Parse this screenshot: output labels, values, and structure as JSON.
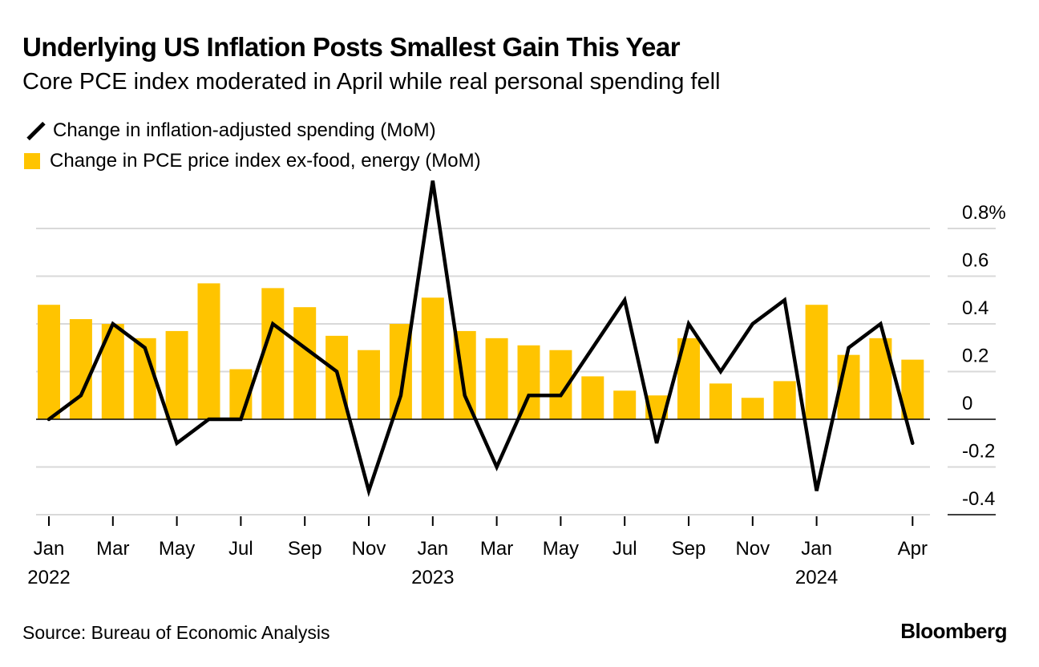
{
  "title": "Underlying US Inflation Posts Smallest Gain This Year",
  "subtitle": "Core PCE index moderated in April while real personal spending fell",
  "source": "Source: Bureau of Economic Analysis",
  "brand": "Bloomberg",
  "colors": {
    "bar": "#FFC400",
    "line": "#000000",
    "grid": "#d9d9d9"
  },
  "chart_data": {
    "type": "bar",
    "x": [
      "2022-01",
      "2022-02",
      "2022-03",
      "2022-04",
      "2022-05",
      "2022-06",
      "2022-07",
      "2022-08",
      "2022-09",
      "2022-10",
      "2022-11",
      "2022-12",
      "2023-01",
      "2023-02",
      "2023-03",
      "2023-04",
      "2023-05",
      "2023-06",
      "2023-07",
      "2023-08",
      "2023-09",
      "2023-10",
      "2023-11",
      "2023-12",
      "2024-01",
      "2024-02",
      "2024-03",
      "2024-04"
    ],
    "series": [
      {
        "name": "Change in PCE price index ex-food, energy (MoM)",
        "type": "bar",
        "values": [
          0.48,
          0.42,
          0.4,
          0.34,
          0.37,
          0.57,
          0.21,
          0.55,
          0.47,
          0.35,
          0.29,
          0.4,
          0.51,
          0.37,
          0.34,
          0.31,
          0.29,
          0.18,
          0.12,
          0.1,
          0.34,
          0.15,
          0.09,
          0.16,
          0.48,
          0.27,
          0.34,
          0.25
        ]
      },
      {
        "name": "Change in inflation-adjusted spending (MoM)",
        "type": "line",
        "values": [
          0.0,
          0.1,
          0.4,
          0.3,
          -0.1,
          0.0,
          0.0,
          0.4,
          0.3,
          0.2,
          -0.3,
          0.1,
          1.0,
          0.1,
          -0.2,
          0.1,
          0.1,
          0.3,
          0.5,
          -0.1,
          0.4,
          0.2,
          0.4,
          0.5,
          -0.3,
          0.3,
          0.4,
          -0.1
        ]
      }
    ],
    "y_ticks": [
      {
        "value": 0.8,
        "label": "0.8%"
      },
      {
        "value": 0.6,
        "label": "0.6"
      },
      {
        "value": 0.4,
        "label": "0.4"
      },
      {
        "value": 0.2,
        "label": "0.2"
      },
      {
        "value": 0,
        "label": "0"
      },
      {
        "value": -0.2,
        "label": "-0.2"
      },
      {
        "value": -0.4,
        "label": "-0.4"
      }
    ],
    "ylim": [
      -0.4,
      0.8
    ],
    "x_ticks": [
      {
        "index": 0,
        "label": "Jan",
        "year": "2022"
      },
      {
        "index": 2,
        "label": "Mar"
      },
      {
        "index": 4,
        "label": "May"
      },
      {
        "index": 6,
        "label": "Jul"
      },
      {
        "index": 8,
        "label": "Sep"
      },
      {
        "index": 10,
        "label": "Nov"
      },
      {
        "index": 12,
        "label": "Jan",
        "year": "2023"
      },
      {
        "index": 14,
        "label": "Mar"
      },
      {
        "index": 16,
        "label": "May"
      },
      {
        "index": 18,
        "label": "Jul"
      },
      {
        "index": 20,
        "label": "Sep"
      },
      {
        "index": 22,
        "label": "Nov"
      },
      {
        "index": 24,
        "label": "Jan",
        "year": "2024"
      },
      {
        "index": 27,
        "label": "Apr"
      }
    ],
    "grid": true,
    "legend_position": "top-left"
  }
}
